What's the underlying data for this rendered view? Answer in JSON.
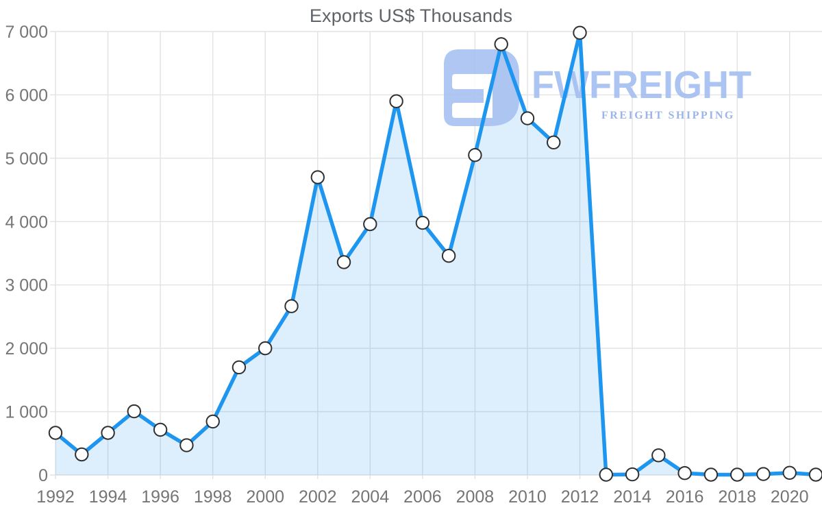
{
  "title": "Exports US$ Thousands",
  "watermark": {
    "brand": "FWFREIGHT",
    "tagline": "FREIGHT SHIPPING",
    "logo_icon": "fwfreight-logo",
    "logo_color": "#a9c3f1",
    "brand_color": "#a6bff0",
    "tagline_color": "#93aee9"
  },
  "colors": {
    "line": "#1e96f0",
    "area_fill": "rgba(30,150,240,0.15)",
    "marker_fill": "#ffffff",
    "marker_stroke": "#303030",
    "grid": "#e2e2e2",
    "axis_text": "#757575",
    "title_text": "#5f6368"
  },
  "chart_data": {
    "type": "area",
    "title": "Exports US$ Thousands",
    "xlabel": "",
    "ylabel": "",
    "grid": true,
    "legend": false,
    "xlim": [
      1992,
      2021
    ],
    "ylim": [
      0,
      7000
    ],
    "x": [
      1992,
      1993,
      1994,
      1995,
      1996,
      1997,
      1998,
      1999,
      2000,
      2001,
      2002,
      2003,
      2004,
      2005,
      2006,
      2007,
      2008,
      2009,
      2010,
      2011,
      2012,
      2013,
      2014,
      2015,
      2016,
      2017,
      2018,
      2019,
      2020,
      2021
    ],
    "values": [
      665,
      325,
      665,
      1005,
      715,
      470,
      845,
      1700,
      2000,
      2665,
      4700,
      3360,
      3960,
      5900,
      3980,
      3460,
      5050,
      6800,
      5630,
      5250,
      6980,
      5,
      10,
      310,
      30,
      5,
      5,
      15,
      35,
      5
    ],
    "x_tick_labels": [
      "1992",
      "1994",
      "1996",
      "1998",
      "2000",
      "2002",
      "2004",
      "2006",
      "2008",
      "2010",
      "2012",
      "2014",
      "2016",
      "2018",
      "2020"
    ],
    "y_tick_values": [
      0,
      1000,
      2000,
      3000,
      4000,
      5000,
      6000,
      7000
    ],
    "y_tick_labels": [
      "0",
      "1 000",
      "2 000",
      "3 000",
      "4 000",
      "5 000",
      "6 000",
      "7 000"
    ]
  }
}
